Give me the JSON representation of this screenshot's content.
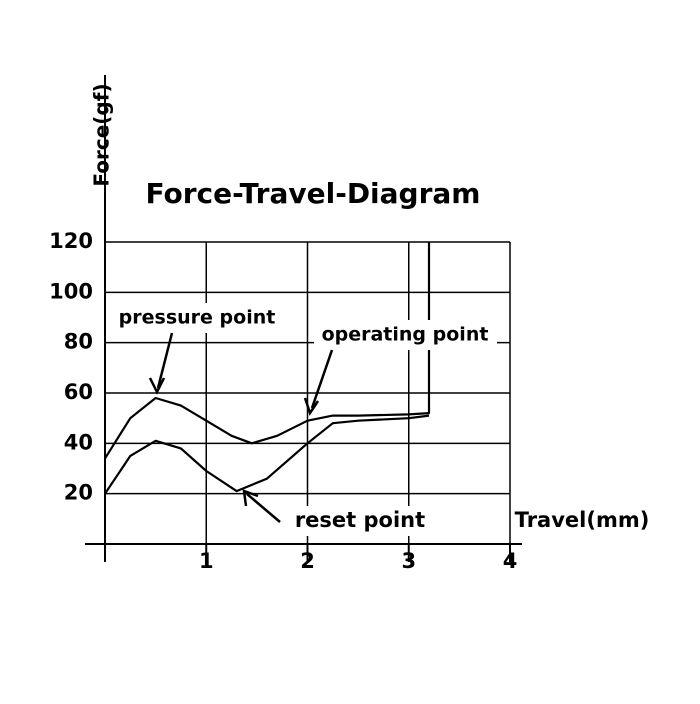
{
  "chart_data": {
    "type": "line",
    "title": "Force-Travel-Diagram",
    "x_label": "Travel(mm)",
    "y_label": "Force(gf)",
    "annotations": [
      "pressure point",
      "operating point",
      "reset point"
    ],
    "xlim": [
      0,
      4
    ],
    "xticks": [
      1,
      2,
      3,
      4
    ],
    "ylim": [
      0,
      120
    ],
    "yticks": [
      20,
      40,
      60,
      80,
      100,
      120
    ],
    "grid": true,
    "series": [
      {
        "color": "#000000",
        "x": [
          0,
          0.25,
          0.5,
          0.75,
          1.0,
          1.25,
          1.45,
          1.7,
          2.0,
          2.25,
          2.5,
          3.0,
          3.2,
          3.2
        ],
        "values": [
          34,
          50,
          58,
          55,
          49,
          43,
          40,
          43,
          49,
          51,
          51,
          51.5,
          52,
          120
        ]
      },
      {
        "color": "#000000",
        "x": [
          0,
          0.25,
          0.5,
          0.75,
          1.0,
          1.3,
          1.6,
          2.0,
          2.25,
          2.5,
          3.0,
          3.2
        ],
        "values": [
          20,
          35,
          41,
          38,
          29,
          21,
          26,
          40,
          48,
          49,
          50,
          51
        ]
      }
    ]
  }
}
